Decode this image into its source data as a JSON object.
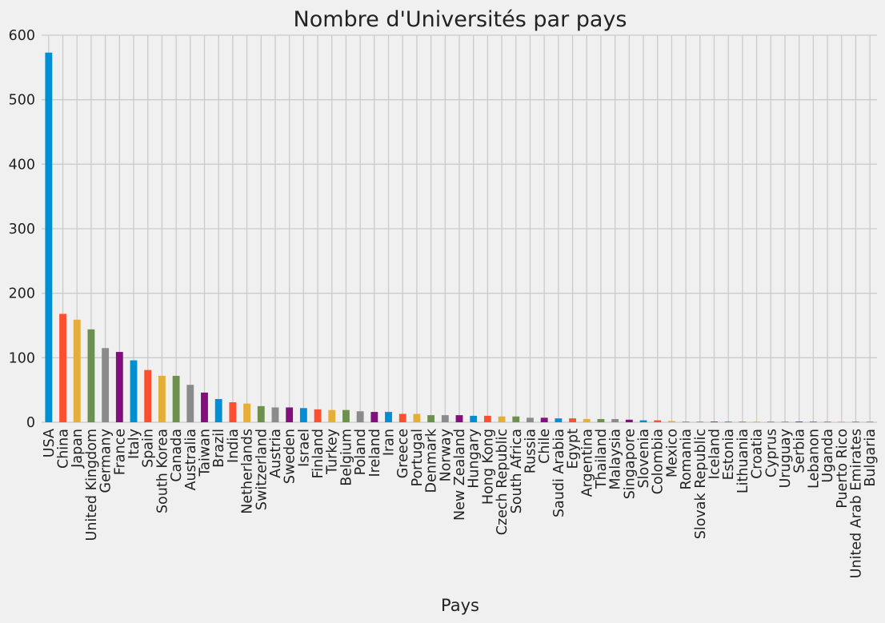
{
  "chart_data": {
    "type": "bar",
    "title": "Nombre d'Universités par pays",
    "xlabel": "Pays",
    "ylabel": "",
    "ylim": [
      0,
      600
    ],
    "yticks": [
      "0",
      "100",
      "200",
      "300",
      "400",
      "500",
      "600"
    ],
    "grid": true,
    "legend": "none",
    "colors": [
      "#008fd5",
      "#fc4f30",
      "#e5ae38",
      "#6d904f",
      "#8b8b8b",
      "#810f7c"
    ],
    "categories": [
      "USA",
      "China",
      "Japan",
      "United Kingdom",
      "Germany",
      "France",
      "Italy",
      "Spain",
      "South Korea",
      "Canada",
      "Australia",
      "Taiwan",
      "Brazil",
      "India",
      "Netherlands",
      "Switzerland",
      "Austria",
      "Sweden",
      "Israel",
      "Finland",
      "Turkey",
      "Belgium",
      "Poland",
      "Ireland",
      "Iran",
      "Greece",
      "Portugal",
      "Denmark",
      "Norway",
      "New Zealand",
      "Hungary",
      "Hong Kong",
      "Czech Republic",
      "South Africa",
      "Russia",
      "Chile",
      "Saudi Arabia",
      "Egypt",
      "Argentina",
      "Thailand",
      "Malaysia",
      "Singapore",
      "Slovenia",
      "Colombia",
      "Mexico",
      "Romania",
      "Slovak Republic",
      "Iceland",
      "Estonia",
      "Lithuania",
      "Croatia",
      "Cyprus",
      "Uruguay",
      "Serbia",
      "Lebanon",
      "Uganda",
      "Puerto Rico",
      "United Arab Emirates",
      "Bulgaria"
    ],
    "values": [
      573,
      168,
      159,
      144,
      115,
      109,
      96,
      81,
      72,
      72,
      58,
      46,
      36,
      31,
      29,
      25,
      23,
      23,
      22,
      20,
      19,
      19,
      17,
      16,
      16,
      13,
      13,
      11,
      11,
      11,
      10,
      10,
      9,
      9,
      7,
      7,
      6,
      6,
      5,
      5,
      5,
      4,
      3,
      3,
      2,
      1,
      1,
      1,
      1,
      1,
      1,
      1,
      1,
      1,
      1,
      1,
      1,
      1,
      1
    ]
  }
}
